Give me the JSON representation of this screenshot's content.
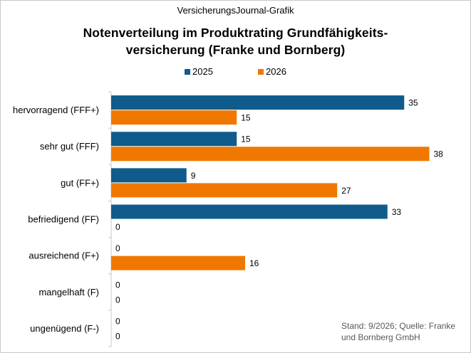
{
  "header": {
    "brand": "VersicherungsJournal-Grafik",
    "title_line1": "Notenverteilung im Produktrating Grundfähigkeits-",
    "title_line2": "versicherung (Franke und Bornberg)"
  },
  "source": {
    "line1": "Stand: 9/2026; Quelle: Franke",
    "line2": "und Bornberg GmbH"
  },
  "colors": {
    "series_2025": "#0f5c8c",
    "series_2026": "#f07800",
    "axis": "#c9c9c9"
  },
  "chart_data": {
    "type": "bar",
    "orientation": "horizontal",
    "categories": [
      "hervorragend (FFF+)",
      "sehr gut (FFF)",
      "gut (FF+)",
      "befriedigend (FF)",
      "ausreichend (F+)",
      "mangelhaft (F)",
      "ungenügend (F-)"
    ],
    "series": [
      {
        "name": "2025",
        "values": [
          35,
          15,
          9,
          33,
          0,
          0,
          0
        ]
      },
      {
        "name": "2026",
        "values": [
          15,
          38,
          27,
          0,
          16,
          0,
          0
        ]
      }
    ],
    "xlim": [
      0,
      40
    ],
    "grid": false,
    "legend": "top-center",
    "data_labels": true
  }
}
